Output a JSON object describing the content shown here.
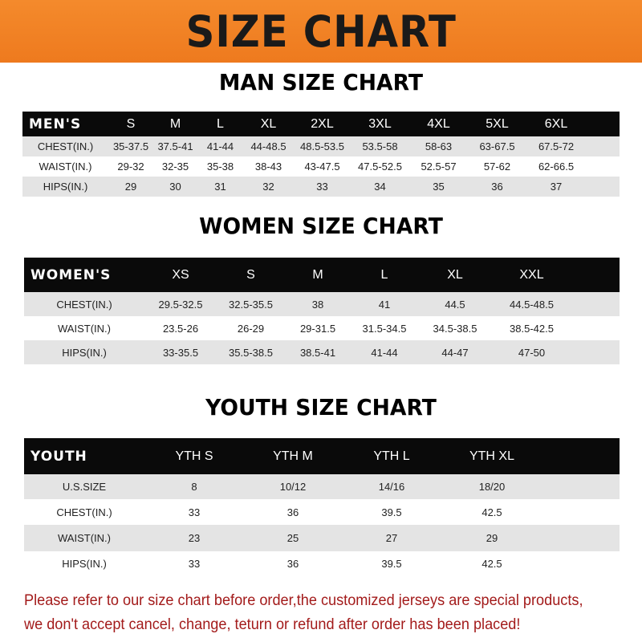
{
  "banner_title": "SIZE CHART",
  "colors": {
    "banner": "#f07d22",
    "header_row": "#0a0a0a",
    "stripe": "#e4e4e4",
    "note": "#a31b1b"
  },
  "men": {
    "title": "MAN SIZE CHART",
    "header": [
      "MEN'S",
      "S",
      "M",
      "L",
      "XL",
      "2XL",
      "3XL",
      "4XL",
      "5XL",
      "6XL",
      ""
    ],
    "rows": [
      [
        "CHEST(IN.)",
        "35-37.5",
        "37.5-41",
        "41-44",
        "44-48.5",
        "48.5-53.5",
        "53.5-58",
        "58-63",
        "63-67.5",
        "67.5-72",
        ""
      ],
      [
        "WAIST(IN.)",
        "29-32",
        "32-35",
        "35-38",
        "38-43",
        "43-47.5",
        "47.5-52.5",
        "52.5-57",
        "57-62",
        "62-66.5",
        ""
      ],
      [
        "HIPS(IN.)",
        "29",
        "30",
        "31",
        "32",
        "33",
        "34",
        "35",
        "36",
        "37",
        ""
      ]
    ]
  },
  "women": {
    "title": "WOMEN SIZE CHART",
    "header": [
      "WOMEN'S",
      "XS",
      "S",
      "M",
      "L",
      "XL",
      "XXL",
      ""
    ],
    "rows": [
      [
        "CHEST(IN.)",
        "29.5-32.5",
        "32.5-35.5",
        "38",
        "41",
        "44.5",
        "44.5-48.5",
        ""
      ],
      [
        "WAIST(IN.)",
        "23.5-26",
        "26-29",
        "29-31.5",
        "31.5-34.5",
        "34.5-38.5",
        "38.5-42.5",
        ""
      ],
      [
        "HIPS(IN.)",
        "33-35.5",
        "35.5-38.5",
        "38.5-41",
        "41-44",
        "44-47",
        "47-50",
        ""
      ]
    ]
  },
  "youth": {
    "title": "YOUTH SIZE CHART",
    "header": [
      "YOUTH",
      "YTH S",
      "YTH M",
      "YTH L",
      "YTH XL",
      ""
    ],
    "rows": [
      [
        "U.S.SIZE",
        "8",
        "10/12",
        "14/16",
        "18/20",
        ""
      ],
      [
        "CHEST(IN.)",
        "33",
        "36",
        "39.5",
        "42.5",
        ""
      ],
      [
        "WAIST(IN.)",
        "23",
        "25",
        "27",
        "29",
        ""
      ],
      [
        "HIPS(IN.)",
        "33",
        "36",
        "39.5",
        "42.5",
        ""
      ]
    ]
  },
  "note": [
    "Please refer to our size chart before order,the customized jerseys are special products,",
    "we don't accept cancel, change, teturn or refund after order has been placed!"
  ]
}
